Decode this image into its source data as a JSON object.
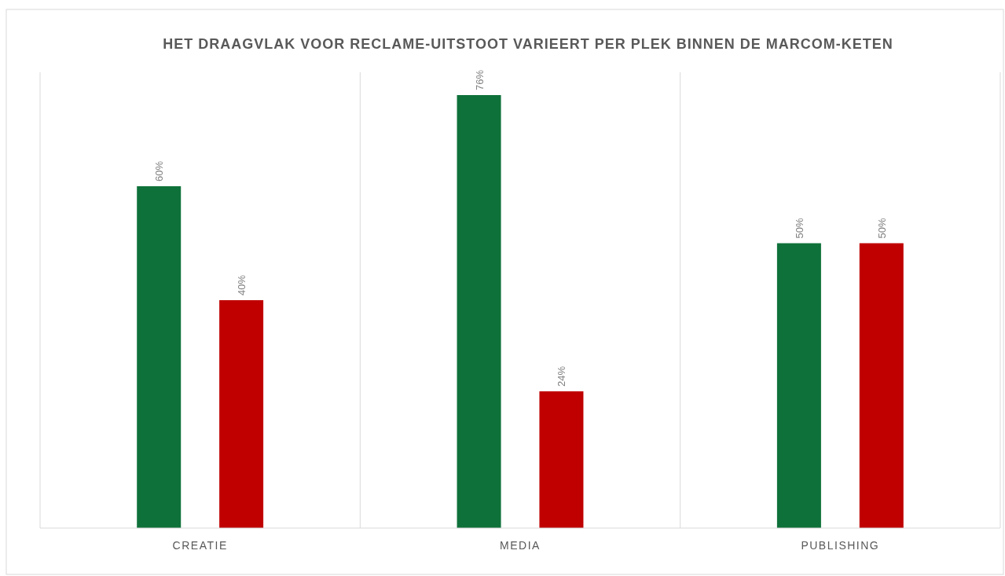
{
  "chart_data": {
    "type": "bar",
    "title": "HET DRAAGVLAK VOOR RECLAME-UITSTOOT VARIEERT PER PLEK BINNEN DE MARCOM-KETEN",
    "categories": [
      "CREATIE",
      "MEDIA",
      "PUBLISHING"
    ],
    "series": [
      {
        "color": "#0e7139",
        "values": [
          60,
          76,
          50
        ],
        "value_labels": [
          "60%",
          "76%",
          "50%"
        ]
      },
      {
        "color": "#c00000",
        "values": [
          40,
          24,
          50
        ],
        "value_labels": [
          "40%",
          "24%",
          "50%"
        ]
      }
    ],
    "ylim": [
      0,
      80
    ],
    "grid": "x"
  }
}
